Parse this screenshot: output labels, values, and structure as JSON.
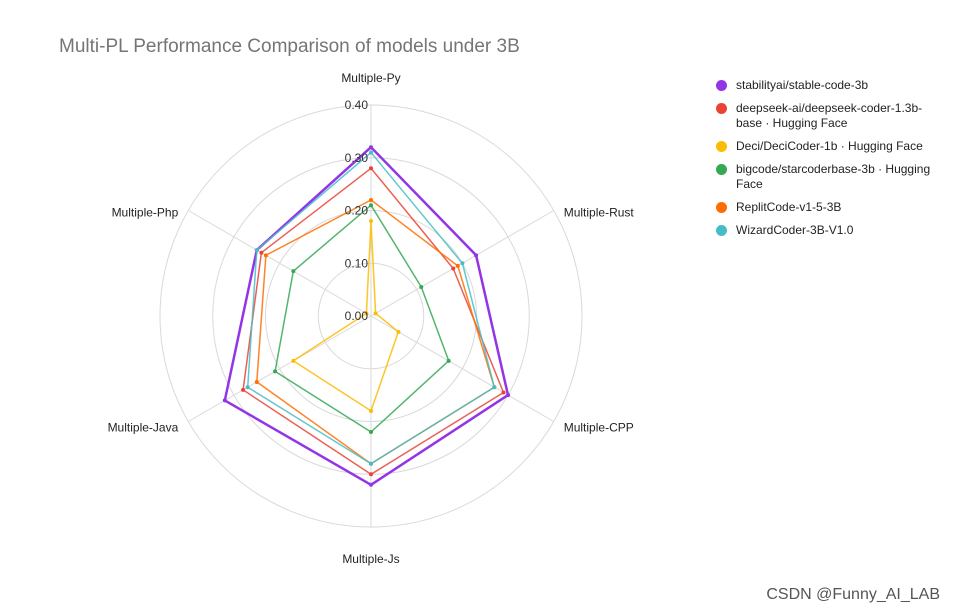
{
  "watermark": "CSDN @Funny_AI_LAB",
  "chart_data": {
    "type": "radar",
    "title": "Multi-PL Performance Comparison of models under 3B",
    "axes": [
      "Multiple-Py",
      "Multiple-Rust",
      "Multiple-CPP",
      "Multiple-Js",
      "Multiple-Java",
      "Multiple-Php"
    ],
    "rlim": [
      0,
      0.4
    ],
    "ticks": [
      "0.00",
      "0.10",
      "0.20",
      "0.30",
      "0.40"
    ],
    "tick_values": [
      0,
      0.1,
      0.2,
      0.3,
      0.4
    ],
    "grid": true,
    "legend_position": "right",
    "series": [
      {
        "name": "stabilityai/stable-code-3b",
        "color": "#9334e6",
        "values": [
          0.32,
          0.23,
          0.3,
          0.32,
          0.32,
          0.25
        ]
      },
      {
        "name": "deepseek-ai/deepseek-coder-1.3b-base · Hugging Face",
        "color": "#ea4335",
        "values": [
          0.28,
          0.18,
          0.29,
          0.3,
          0.28,
          0.24
        ]
      },
      {
        "name": "Deci/DeciCoder-1b · Hugging Face",
        "color": "#fbbc04",
        "values": [
          0.18,
          0.01,
          0.06,
          0.18,
          0.17,
          0.01
        ]
      },
      {
        "name": "bigcode/starcoderbase-3b · Hugging Face",
        "color": "#34a853",
        "values": [
          0.21,
          0.11,
          0.17,
          0.22,
          0.21,
          0.17
        ]
      },
      {
        "name": "ReplitCode-v1-5-3B",
        "color": "#ff6d01",
        "values": [
          0.22,
          0.19,
          0.27,
          0.28,
          0.25,
          0.23
        ]
      },
      {
        "name": "WizardCoder-3B-V1.0",
        "color": "#46bdc6",
        "values": [
          0.31,
          0.2,
          0.27,
          0.28,
          0.27,
          0.25
        ]
      }
    ]
  }
}
